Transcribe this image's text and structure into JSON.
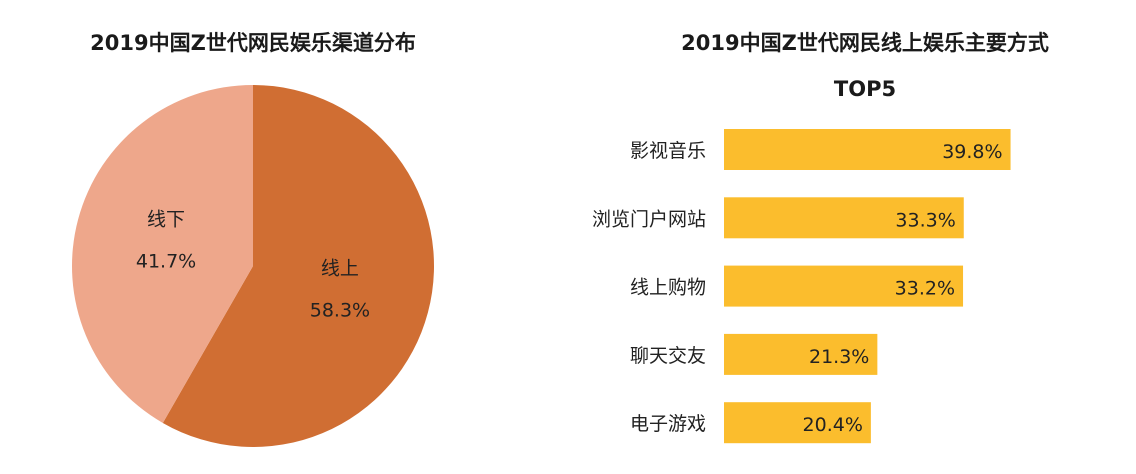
{
  "chart_data": [
    {
      "type": "pie",
      "title": "2019中国Z世代网民娱乐渠道分布",
      "slices": [
        {
          "label": "线上",
          "value": 58.3,
          "display": "58.3%",
          "color": "#D06E33"
        },
        {
          "label": "线下",
          "value": 41.7,
          "display": "41.7%",
          "color": "#EEA78B"
        }
      ]
    },
    {
      "type": "bar",
      "orientation": "horizontal",
      "title": "2019中国Z世代网民线上娱乐主要方式",
      "subtitle": "TOP5",
      "categories": [
        "影视音乐",
        "浏览门户网站",
        "线上购物",
        "聊天交友",
        "电子游戏"
      ],
      "values": [
        39.8,
        33.3,
        33.2,
        21.3,
        20.4
      ],
      "labels": [
        "39.8%",
        "33.3%",
        "33.2%",
        "21.3%",
        "20.4%"
      ],
      "color": "#FBBD2D",
      "unit": "%"
    }
  ]
}
